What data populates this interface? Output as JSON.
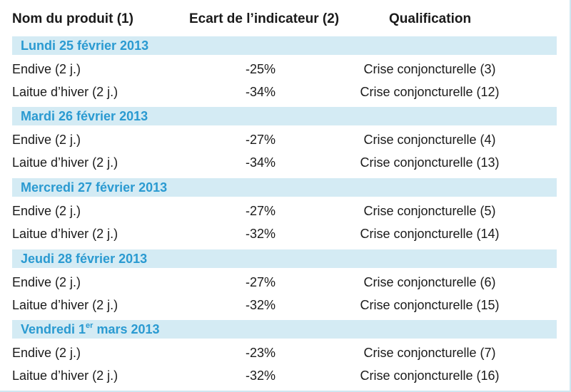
{
  "header": {
    "col_product": "Nom du produit (1)",
    "col_ecart": "Ecart de l’indicateur (2)",
    "col_qualification": "Qualification"
  },
  "days": [
    {
      "label": "Lundi 25 février 2013",
      "rows": [
        {
          "product": "Endive (2 j.)",
          "ecart": "-25%",
          "qualification": "Crise conjoncturelle (3)"
        },
        {
          "product": "Laitue d’hiver (2 j.)",
          "ecart": "-34%",
          "qualification": "Crise conjoncturelle (12)"
        }
      ]
    },
    {
      "label": "Mardi 26 février 2013",
      "rows": [
        {
          "product": "Endive (2 j.)",
          "ecart": "-27%",
          "qualification": "Crise conjoncturelle (4)"
        },
        {
          "product": "Laitue d’hiver (2 j.)",
          "ecart": "-34%",
          "qualification": "Crise conjoncturelle (13)"
        }
      ]
    },
    {
      "label": "Mercredi 27 février 2013",
      "rows": [
        {
          "product": "Endive (2 j.)",
          "ecart": "-27%",
          "qualification": "Crise conjoncturelle (5)"
        },
        {
          "product": "Laitue d’hiver (2 j.)",
          "ecart": "-32%",
          "qualification": "Crise conjoncturelle (14)"
        }
      ]
    },
    {
      "label": "Jeudi 28 février 2013",
      "rows": [
        {
          "product": "Endive (2 j.)",
          "ecart": "-27%",
          "qualification": "Crise conjoncturelle (6)"
        },
        {
          "product": "Laitue d’hiver (2 j.)",
          "ecart": "-32%",
          "qualification": "Crise conjoncturelle (15)"
        }
      ]
    },
    {
      "label_prefix": "Vendredi 1",
      "label_sup": "er",
      "label_suffix": " mars 2013",
      "rows": [
        {
          "product": "Endive (2 j.)",
          "ecart": "-23%",
          "qualification": "Crise conjoncturelle (7)"
        },
        {
          "product": "Laitue d’hiver (2 j.)",
          "ecart": "-32%",
          "qualification": "Crise conjoncturelle (16)"
        }
      ]
    }
  ]
}
